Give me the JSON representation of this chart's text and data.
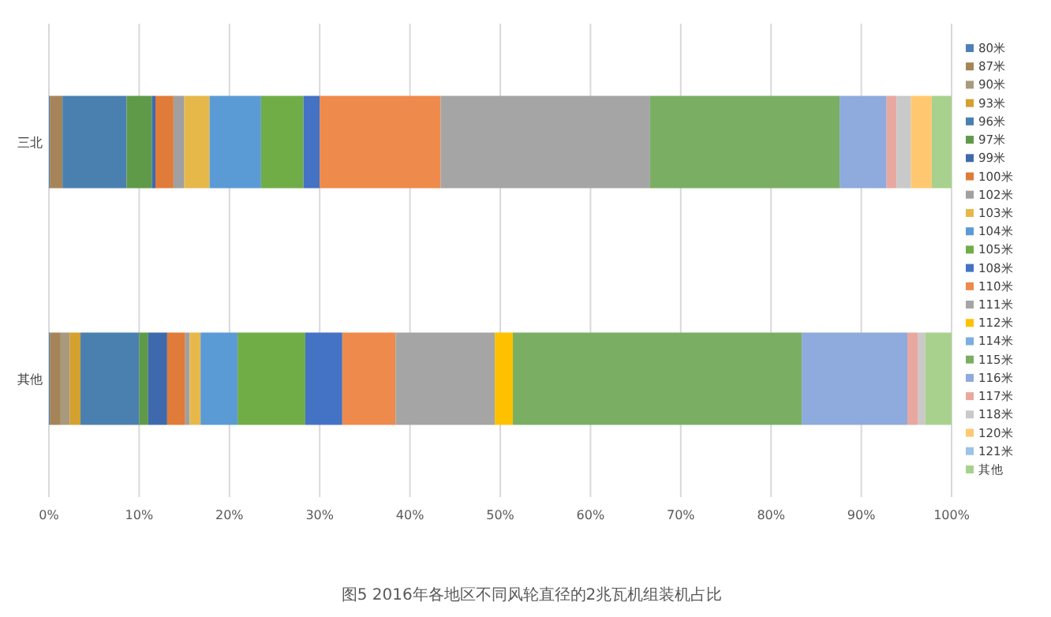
{
  "chart_data": {
    "type": "bar",
    "orientation": "horizontal",
    "stacked": true,
    "title": "图5 2016年各地区不同风轮直径的2兆瓦机组装机占比",
    "categories": [
      "三北",
      "其他"
    ],
    "xlim": [
      0,
      100
    ],
    "xticks": [
      {
        "value": 0,
        "label": "0%"
      },
      {
        "value": 10,
        "label": "10%"
      },
      {
        "value": 20,
        "label": "20%"
      },
      {
        "value": 30,
        "label": "30%"
      },
      {
        "value": 40,
        "label": "40%"
      },
      {
        "value": 50,
        "label": "50%"
      },
      {
        "value": 60,
        "label": "60%"
      },
      {
        "value": 70,
        "label": "70%"
      },
      {
        "value": 80,
        "label": "80%"
      },
      {
        "value": 90,
        "label": "90%"
      },
      {
        "value": 100,
        "label": "100%"
      }
    ],
    "grid": "x",
    "legend": "right",
    "series": [
      {
        "name": "80米",
        "color": "#4e7fb5",
        "values": [
          0.1,
          0.1
        ]
      },
      {
        "name": "87米",
        "color": "#a6845a",
        "values": [
          1.4,
          1.2
        ]
      },
      {
        "name": "90米",
        "color": "#a89a7c",
        "values": [
          0,
          1.0
        ]
      },
      {
        "name": "93米",
        "color": "#d4a030",
        "values": [
          0,
          1.2
        ]
      },
      {
        "name": "96米",
        "color": "#4a80b0",
        "values": [
          7.1,
          6.5
        ]
      },
      {
        "name": "97米",
        "color": "#5f9a48",
        "values": [
          2.8,
          1.0
        ]
      },
      {
        "name": "99米",
        "color": "#3e6aad",
        "values": [
          0.4,
          2.1
        ]
      },
      {
        "name": "100米",
        "color": "#e07b39",
        "values": [
          2.0,
          2.0
        ]
      },
      {
        "name": "102米",
        "color": "#a0a0a0",
        "values": [
          1.2,
          0.5
        ]
      },
      {
        "name": "103米",
        "color": "#e6b84a",
        "values": [
          2.8,
          1.2
        ]
      },
      {
        "name": "104米",
        "color": "#5b9bd5",
        "values": [
          5.7,
          4.1
        ]
      },
      {
        "name": "105米",
        "color": "#70ad47",
        "values": [
          4.7,
          7.5
        ]
      },
      {
        "name": "108米",
        "color": "#4472c4",
        "values": [
          1.8,
          4.1
        ]
      },
      {
        "name": "110米",
        "color": "#ed8a4c",
        "values": [
          13.4,
          5.9
        ]
      },
      {
        "name": "111米",
        "color": "#a5a5a5",
        "values": [
          23.2,
          11.0
        ]
      },
      {
        "name": "112米",
        "color": "#ffc000",
        "values": [
          0,
          2.0
        ]
      },
      {
        "name": "114米",
        "color": "#7cafdd",
        "values": [
          0,
          0
        ]
      },
      {
        "name": "115米",
        "color": "#7aaf63",
        "values": [
          21.0,
          32.0
        ]
      },
      {
        "name": "116米",
        "color": "#8faadc",
        "values": [
          5.2,
          11.7
        ]
      },
      {
        "name": "117米",
        "color": "#e8a8a0",
        "values": [
          1.1,
          1.2
        ]
      },
      {
        "name": "118米",
        "color": "#c9c9c9",
        "values": [
          1.6,
          0.8
        ]
      },
      {
        "name": "120米",
        "color": "#ffc870",
        "values": [
          2.3,
          0
        ]
      },
      {
        "name": "121米",
        "color": "#9dc3e6",
        "values": [
          0,
          0
        ]
      },
      {
        "name": "其他",
        "color": "#a9d18e",
        "values": [
          2.2,
          2.9
        ]
      }
    ]
  }
}
